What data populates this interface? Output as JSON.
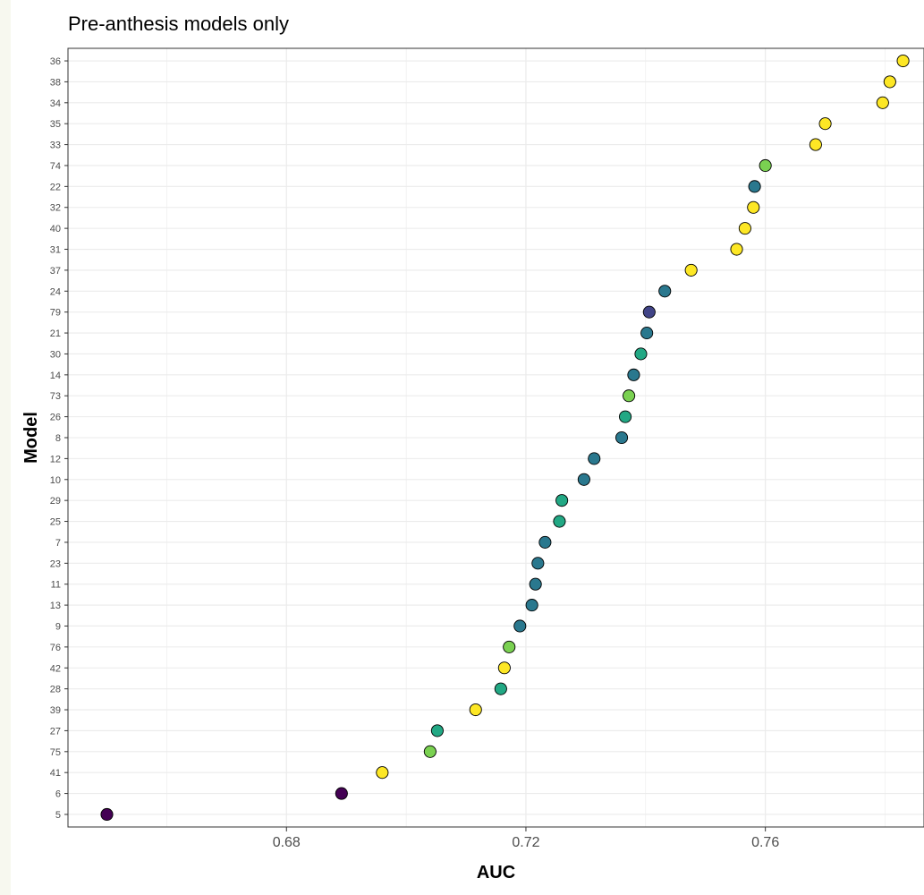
{
  "chart_data": {
    "type": "scatter",
    "title": "Pre-anthesis models only",
    "xlabel": "AUC",
    "ylabel": "Model",
    "xlim": [
      0.6435,
      0.7865
    ],
    "x_ticks": [
      0.68,
      0.72,
      0.76
    ],
    "x_tick_labels": [
      "0.68",
      "0.72",
      "0.76"
    ],
    "grid": true,
    "legend": "none",
    "categories": [
      "5",
      "6",
      "41",
      "75",
      "27",
      "39",
      "28",
      "42",
      "76",
      "9",
      "13",
      "11",
      "23",
      "7",
      "25",
      "29",
      "10",
      "12",
      "8",
      "26",
      "73",
      "14",
      "30",
      "21",
      "79",
      "24",
      "37",
      "31",
      "40",
      "32",
      "22",
      "74",
      "33",
      "35",
      "34",
      "38",
      "36"
    ],
    "points": [
      {
        "model": "5",
        "auc": 0.65,
        "color": "#440154"
      },
      {
        "model": "6",
        "auc": 0.6892,
        "color": "#440154"
      },
      {
        "model": "41",
        "auc": 0.696,
        "color": "#fde725"
      },
      {
        "model": "75",
        "auc": 0.704,
        "color": "#7ad151"
      },
      {
        "model": "27",
        "auc": 0.7052,
        "color": "#22a884"
      },
      {
        "model": "39",
        "auc": 0.7116,
        "color": "#fde725"
      },
      {
        "model": "28",
        "auc": 0.7158,
        "color": "#22a884"
      },
      {
        "model": "42",
        "auc": 0.7164,
        "color": "#fde725"
      },
      {
        "model": "76",
        "auc": 0.7172,
        "color": "#7ad151"
      },
      {
        "model": "9",
        "auc": 0.719,
        "color": "#2a788e"
      },
      {
        "model": "13",
        "auc": 0.721,
        "color": "#2a788e"
      },
      {
        "model": "11",
        "auc": 0.7216,
        "color": "#2a788e"
      },
      {
        "model": "23",
        "auc": 0.722,
        "color": "#2a788e"
      },
      {
        "model": "7",
        "auc": 0.7232,
        "color": "#2a788e"
      },
      {
        "model": "25",
        "auc": 0.7256,
        "color": "#22a884"
      },
      {
        "model": "29",
        "auc": 0.726,
        "color": "#22a884"
      },
      {
        "model": "10",
        "auc": 0.7297,
        "color": "#2a788e"
      },
      {
        "model": "12",
        "auc": 0.7314,
        "color": "#2a788e"
      },
      {
        "model": "8",
        "auc": 0.736,
        "color": "#2a788e"
      },
      {
        "model": "26",
        "auc": 0.7366,
        "color": "#22a884"
      },
      {
        "model": "73",
        "auc": 0.7372,
        "color": "#7ad151"
      },
      {
        "model": "14",
        "auc": 0.738,
        "color": "#2a788e"
      },
      {
        "model": "30",
        "auc": 0.7392,
        "color": "#22a884"
      },
      {
        "model": "21",
        "auc": 0.7402,
        "color": "#2a788e"
      },
      {
        "model": "79",
        "auc": 0.7406,
        "color": "#414487"
      },
      {
        "model": "24",
        "auc": 0.7432,
        "color": "#2a788e"
      },
      {
        "model": "37",
        "auc": 0.7476,
        "color": "#fde725"
      },
      {
        "model": "31",
        "auc": 0.7552,
        "color": "#fde725"
      },
      {
        "model": "40",
        "auc": 0.7566,
        "color": "#fde725"
      },
      {
        "model": "32",
        "auc": 0.758,
        "color": "#fde725"
      },
      {
        "model": "22",
        "auc": 0.7582,
        "color": "#2a788e"
      },
      {
        "model": "74",
        "auc": 0.76,
        "color": "#7ad151"
      },
      {
        "model": "33",
        "auc": 0.7684,
        "color": "#fde725"
      },
      {
        "model": "35",
        "auc": 0.77,
        "color": "#fde725"
      },
      {
        "model": "34",
        "auc": 0.7796,
        "color": "#fde725"
      },
      {
        "model": "38",
        "auc": 0.7808,
        "color": "#fde725"
      },
      {
        "model": "36",
        "auc": 0.783,
        "color": "#fde725"
      }
    ]
  }
}
